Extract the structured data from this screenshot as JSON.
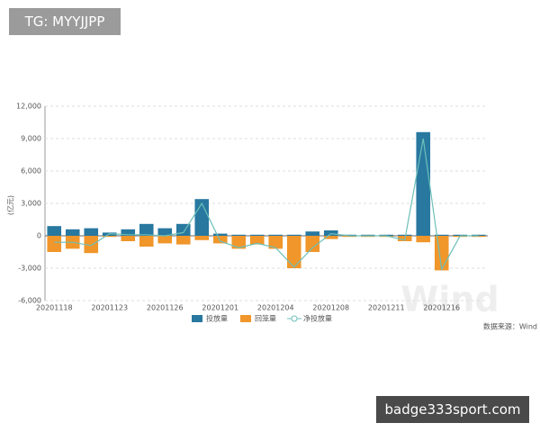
{
  "overlay": {
    "top_left": "TG: MYYJJPP",
    "bottom_right": "badge333sport.com"
  },
  "chart_data": {
    "type": "bar-line",
    "y_label": "(亿元)",
    "source": "数据来源：Wind",
    "watermark": "Wind",
    "categories": [
      "20201118",
      null,
      null,
      "20201123",
      null,
      null,
      "20201126",
      null,
      null,
      "20201201",
      null,
      null,
      "20201204",
      null,
      null,
      "20201208",
      null,
      null,
      "20201211",
      null,
      null,
      "20201216",
      null,
      null
    ],
    "series": [
      {
        "name": "投放量",
        "color": "#2878a0",
        "kind": "bar",
        "values": [
          900,
          600,
          700,
          300,
          600,
          1100,
          700,
          1100,
          3400,
          200,
          100,
          100,
          100,
          100,
          400,
          500,
          100,
          100,
          100,
          100,
          9600,
          100,
          100,
          100
        ]
      },
      {
        "name": "回笼量",
        "color": "#f0962a",
        "kind": "bar",
        "values": [
          -1500,
          -1200,
          -1600,
          -100,
          -500,
          -1000,
          -700,
          -800,
          -400,
          -700,
          -1200,
          -800,
          -1200,
          -3000,
          -1500,
          -300,
          -100,
          -100,
          -100,
          -500,
          -600,
          -3200,
          -100,
          -100
        ]
      },
      {
        "name": "净投放量",
        "color": "#6cbfb8",
        "kind": "line",
        "values": [
          -600,
          -600,
          -900,
          200,
          100,
          100,
          0,
          300,
          3000,
          -500,
          -1100,
          -700,
          -1100,
          -2900,
          -1100,
          200,
          0,
          0,
          0,
          -400,
          9000,
          -3100,
          0,
          0
        ]
      }
    ],
    "ylim": [
      -6000,
      12000
    ],
    "yticks": [
      {
        "value": -6000,
        "label": "-6,000"
      },
      {
        "value": -3000,
        "label": "-3,000"
      },
      0,
      {
        "value": 3000,
        "label": "3,000"
      },
      {
        "value": 6000,
        "label": "6,000"
      },
      {
        "value": 9000,
        "label": "9,000"
      },
      {
        "value": 12000,
        "label": "12,000"
      }
    ],
    "grid": true
  }
}
